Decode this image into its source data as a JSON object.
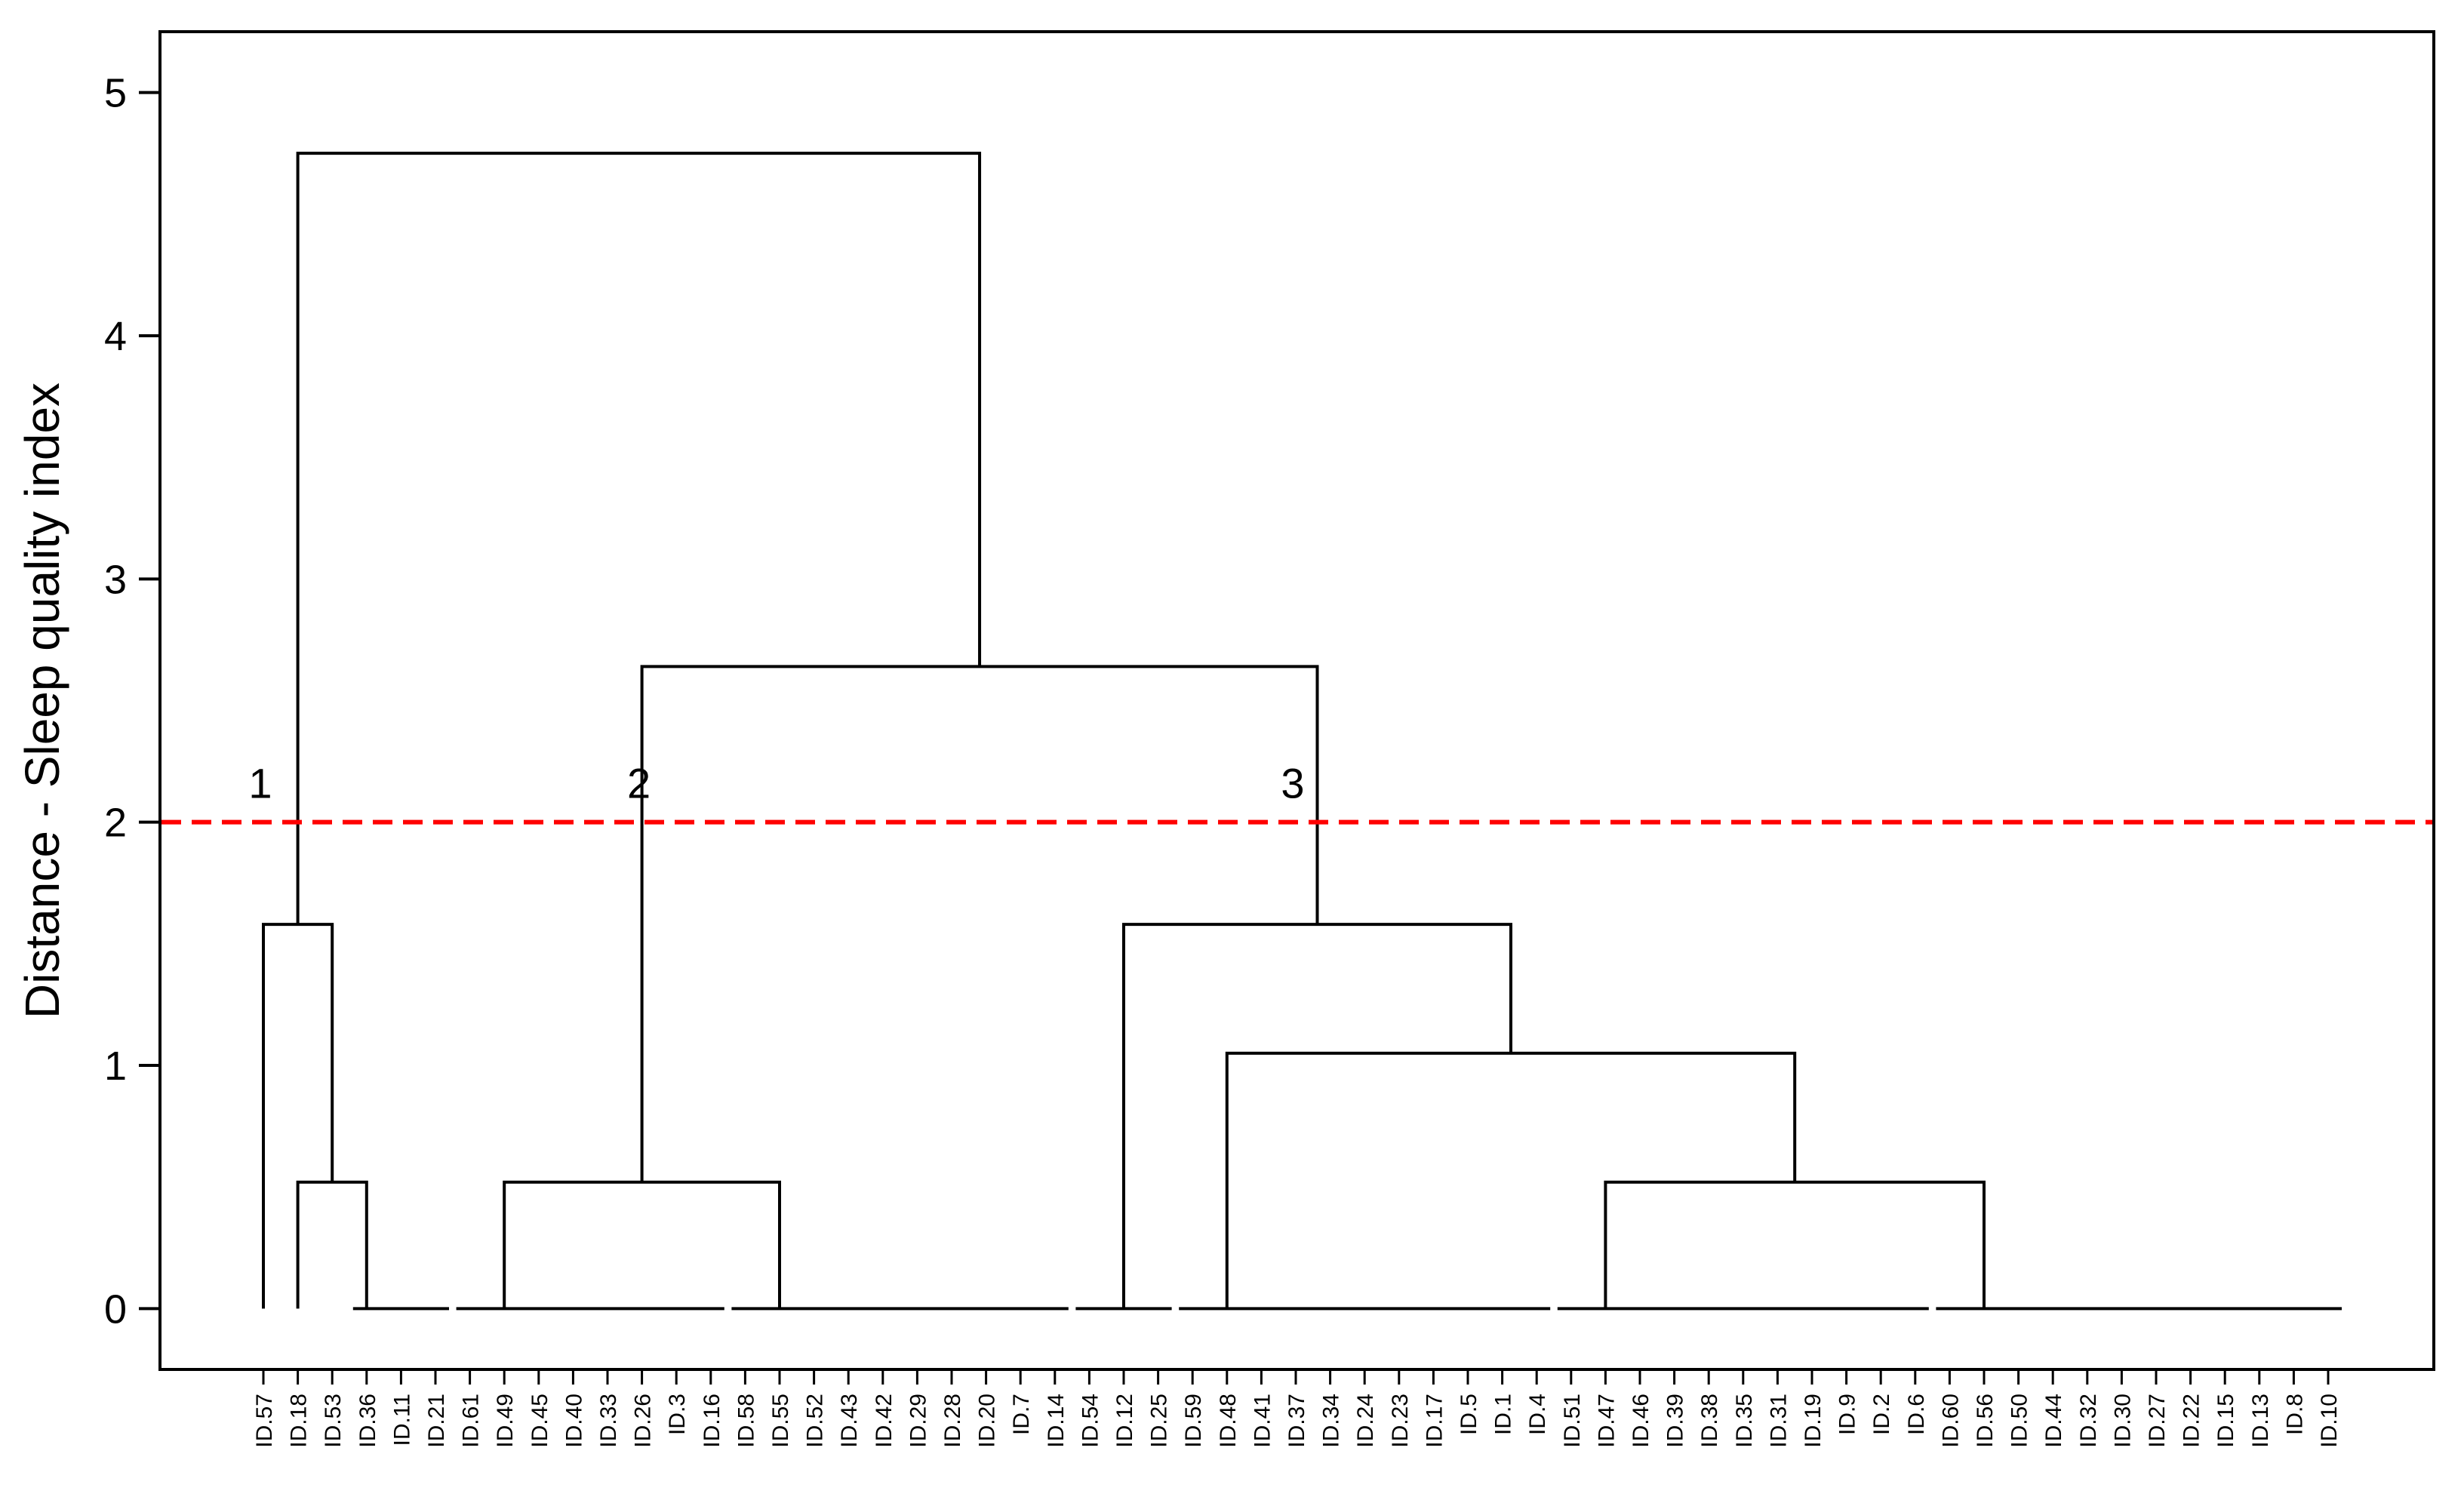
{
  "chart_data": {
    "type": "dendrogram",
    "ylabel": "Distance - Sleep quality index",
    "ylim": [
      -0.25,
      5.25
    ],
    "yticks": [
      0,
      1,
      2,
      3,
      4,
      5
    ],
    "leaves": [
      "ID.57",
      "ID.18",
      "ID.53",
      "ID.36",
      "ID.11",
      "ID.21",
      "ID.61",
      "ID.49",
      "ID.45",
      "ID.40",
      "ID.33",
      "ID.26",
      "ID.3",
      "ID.16",
      "ID.58",
      "ID.55",
      "ID.52",
      "ID.43",
      "ID.42",
      "ID.29",
      "ID.28",
      "ID.20",
      "ID.7",
      "ID.14",
      "ID.54",
      "ID.12",
      "ID.25",
      "ID.59",
      "ID.48",
      "ID.41",
      "ID.37",
      "ID.34",
      "ID.24",
      "ID.23",
      "ID.17",
      "ID.5",
      "ID.1",
      "ID.4",
      "ID.51",
      "ID.47",
      "ID.46",
      "ID.39",
      "ID.38",
      "ID.35",
      "ID.31",
      "ID.19",
      "ID.9",
      "ID.2",
      "ID.6",
      "ID.60",
      "ID.56",
      "ID.50",
      "ID.44",
      "ID.32",
      "ID.30",
      "ID.27",
      "ID.22",
      "ID.15",
      "ID.13",
      "ID.8",
      "ID.10"
    ],
    "zero_groups": [
      {
        "from": "ID.36",
        "to": "ID.21",
        "anchor": "ID.36"
      },
      {
        "from": "ID.61",
        "to": "ID.16",
        "anchor": "ID.49"
      },
      {
        "from": "ID.58",
        "to": "ID.14",
        "anchor": "ID.55"
      },
      {
        "from": "ID.54",
        "to": "ID.25",
        "anchor": "ID.12"
      },
      {
        "from": "ID.59",
        "to": "ID.4",
        "anchor": "ID.48"
      },
      {
        "from": "ID.51",
        "to": "ID.6",
        "anchor": "ID.47"
      },
      {
        "from": "ID.60",
        "to": "ID.10",
        "anchor": "ID.56"
      }
    ],
    "merges": [
      {
        "id": "a",
        "left": "ID.18",
        "right": "ID.36",
        "height": 0.52
      },
      {
        "id": "b",
        "left": "ID.57",
        "right": "a",
        "height": 1.58
      },
      {
        "id": "c",
        "left": "ID.49",
        "right": "ID.55",
        "height": 0.52
      },
      {
        "id": "d",
        "left": "ID.47",
        "right": "ID.56",
        "height": 0.52
      },
      {
        "id": "e",
        "left": "ID.48",
        "right": "d",
        "height": 1.05
      },
      {
        "id": "f",
        "left": "ID.12",
        "right": "e",
        "height": 1.58
      },
      {
        "id": "g",
        "left": "c",
        "right": "f",
        "height": 2.64
      },
      {
        "id": "h",
        "left": "b",
        "right": "g",
        "height": 4.75
      }
    ],
    "cut_line": {
      "y": 2,
      "color": "#ff0000",
      "style": "dashed"
    },
    "cluster_labels": [
      {
        "text": "1",
        "leaf": "ID.57",
        "y": 2.1
      },
      {
        "text": "2",
        "leaf": "ID.26",
        "y": 2.1
      },
      {
        "text": "3",
        "leaf": "ID.37",
        "y": 2.1
      }
    ],
    "grid": false,
    "line_color": "#000000"
  }
}
